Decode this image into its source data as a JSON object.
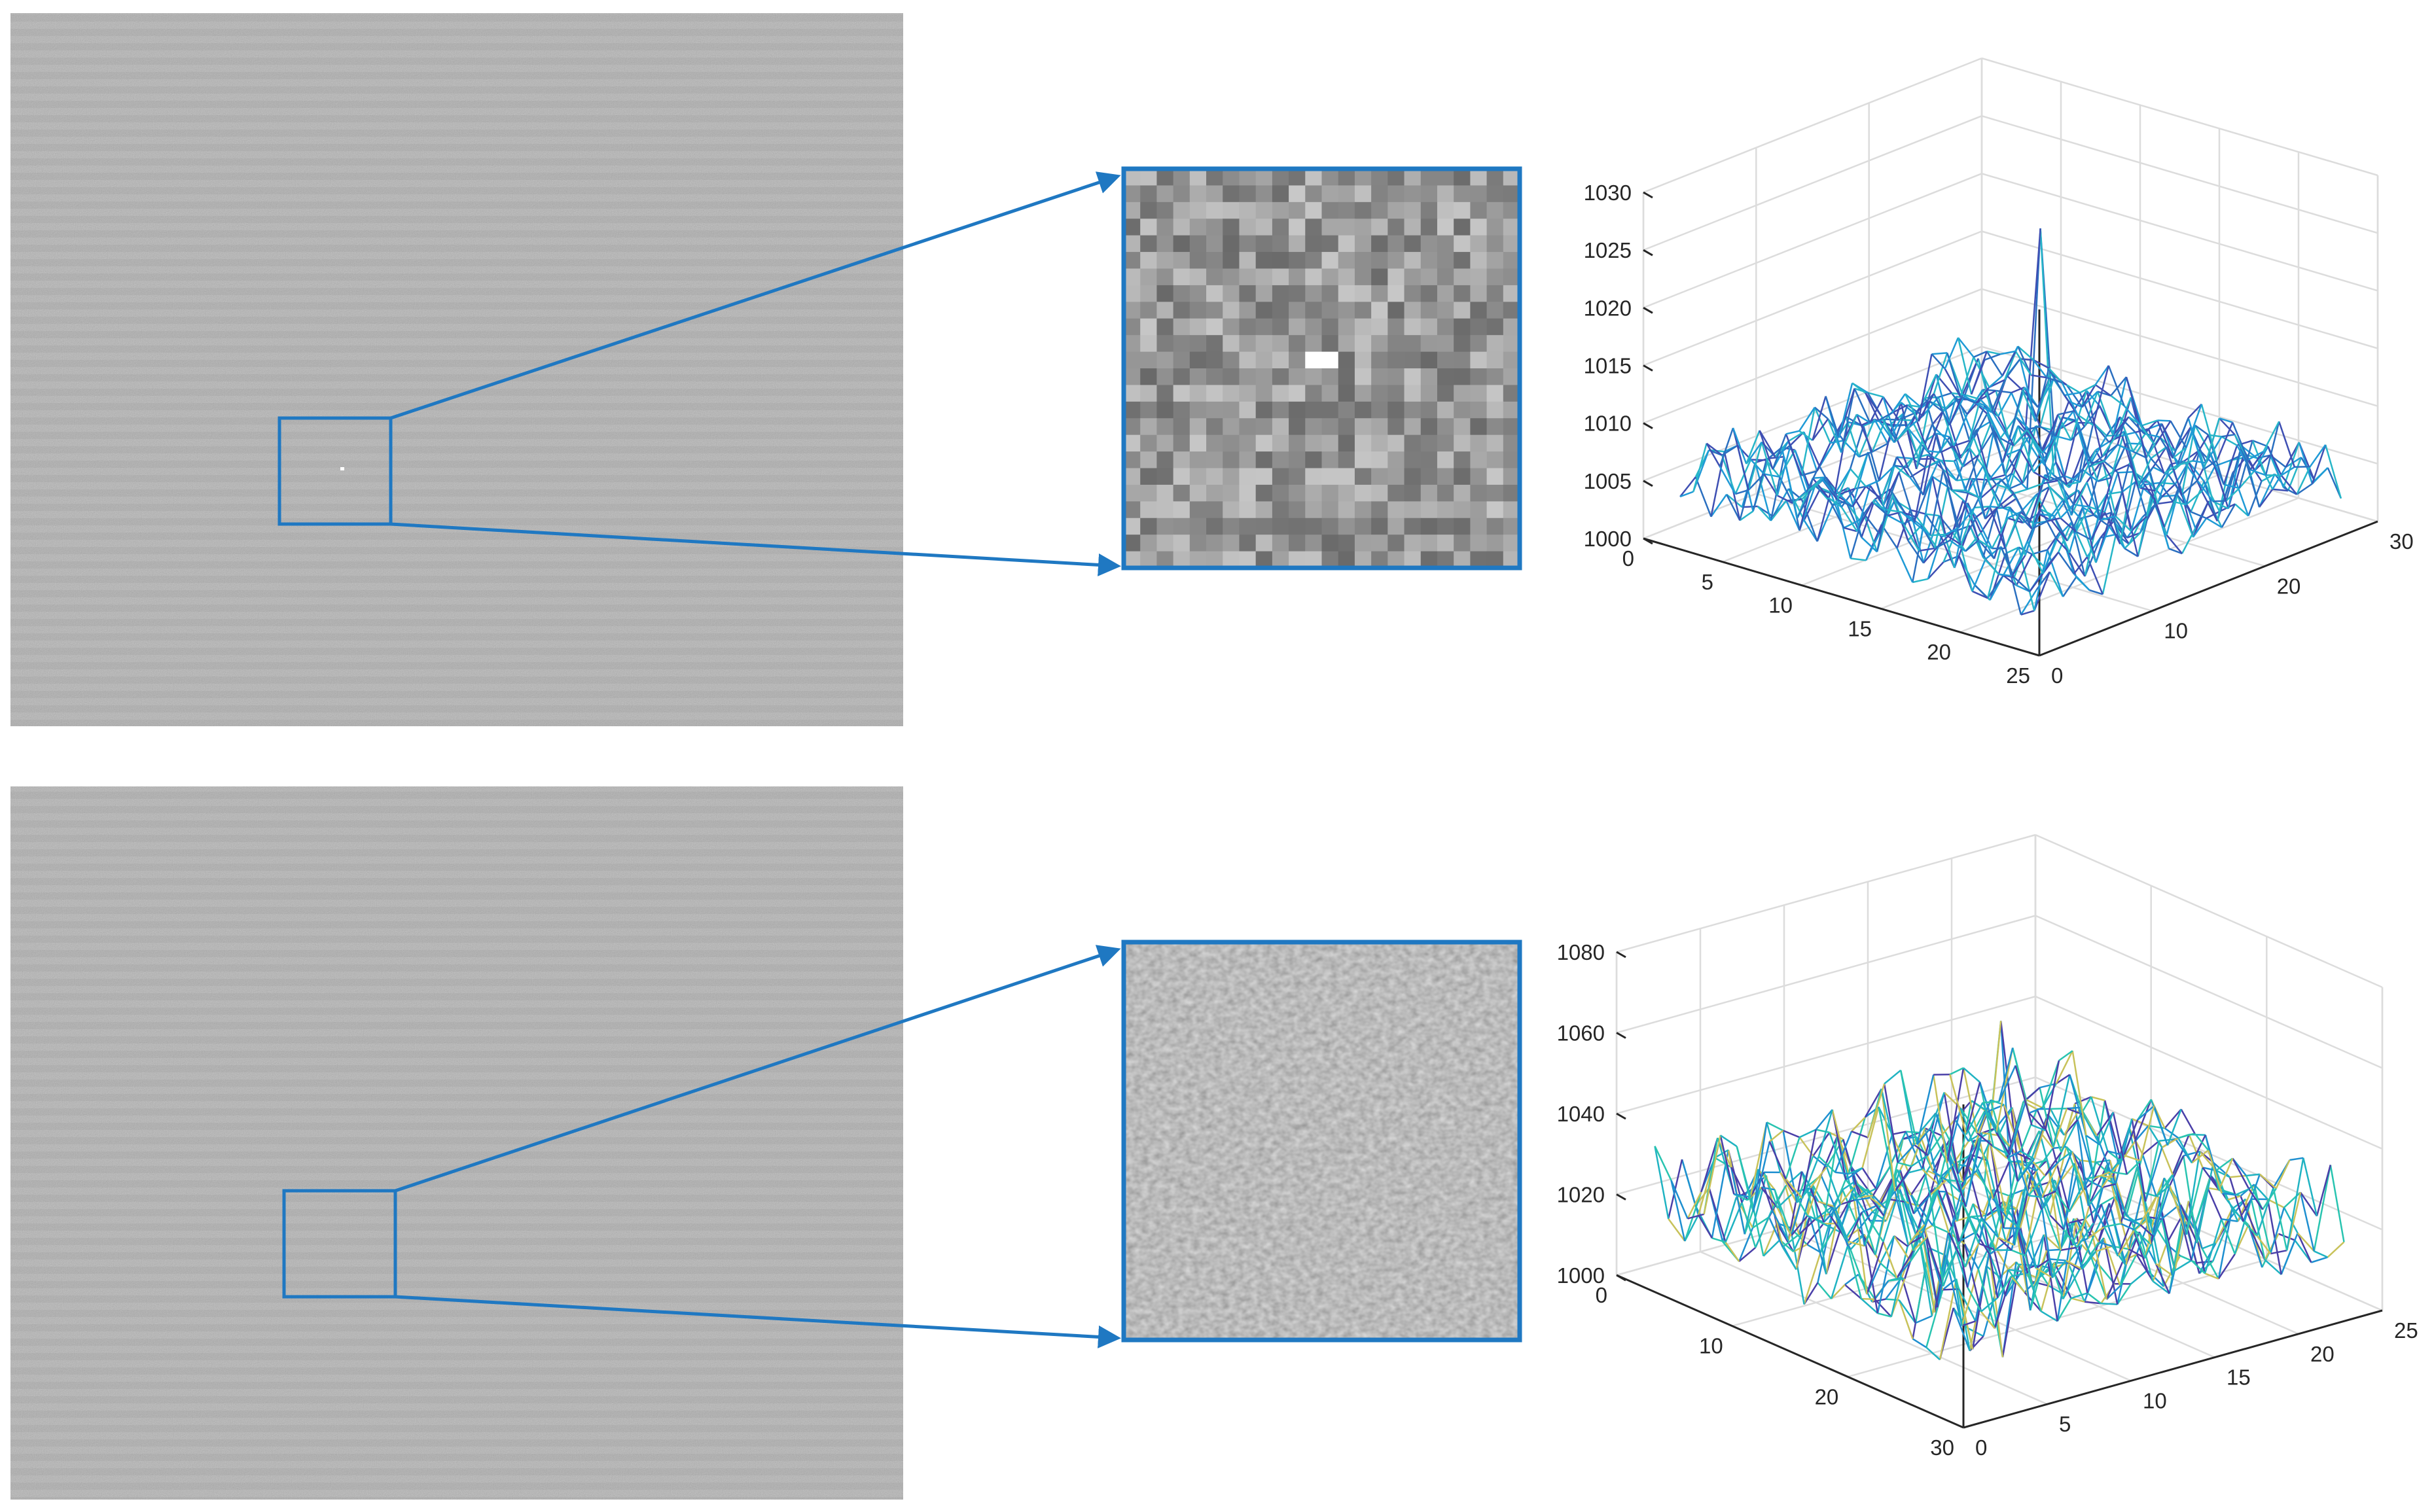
{
  "figure": {
    "panels": [
      {
        "row": "top",
        "target": "bright-point",
        "zoom_texture": "coarse"
      },
      {
        "row": "bottom",
        "target": "none",
        "zoom_texture": "fine"
      }
    ],
    "colors": {
      "background": "#ffffff",
      "highlight": "#1f78c2",
      "grid": "#dcdcdc",
      "axis": "#262626",
      "surface_top": [
        "#2a6fc0",
        "#1f9ad6",
        "#27b6c8",
        "#3e4fb3"
      ],
      "surface_bottom": [
        "#1fb3c2",
        "#29c4b0",
        "#1e8fd0",
        "#4a3fa8",
        "#c8c25a"
      ]
    }
  },
  "chart_data": [
    {
      "type": "surface",
      "title": "",
      "xlabel": "",
      "ylabel": "",
      "zlabel": "",
      "z_ticks": [
        "1000",
        "1005",
        "1010",
        "1015",
        "1020",
        "1025",
        "1030"
      ],
      "y_ticks": [
        "25",
        "20",
        "15",
        "10",
        "5",
        "0"
      ],
      "x_ticks": [
        "0",
        "10",
        "20",
        "30"
      ],
      "zlim": [
        1000,
        1030
      ],
      "ylim": [
        0,
        25
      ],
      "xlim": [
        0,
        30
      ],
      "grid_size": 24,
      "baseline": 1004,
      "noise_amplitude": 4.5,
      "peak": {
        "row": 10,
        "col": 12,
        "value": 1026.5
      }
    },
    {
      "type": "surface",
      "title": "",
      "xlabel": "",
      "ylabel": "",
      "zlabel": "",
      "z_ticks": [
        "1000",
        "1020",
        "1040",
        "1060",
        "1080"
      ],
      "y_ticks": [
        "30",
        "20",
        "10",
        "0"
      ],
      "x_ticks": [
        "0",
        "5",
        "10",
        "15",
        "20",
        "25"
      ],
      "zlim": [
        1000,
        1080
      ],
      "ylim": [
        0,
        30
      ],
      "xlim": [
        0,
        25
      ],
      "grid_size": 24,
      "baseline": 1018,
      "noise_amplitude": 18,
      "peak": {
        "row": 12,
        "col": 12,
        "value": 1066
      }
    }
  ]
}
